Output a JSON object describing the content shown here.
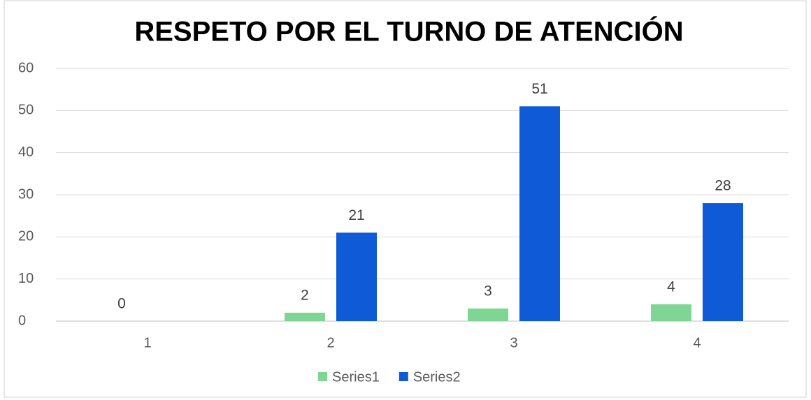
{
  "chart_data": {
    "type": "bar",
    "title": "RESPETO POR EL TURNO DE ATENCIÓN",
    "categories": [
      "1",
      "2",
      "3",
      "4"
    ],
    "series": [
      {
        "name": "Series1",
        "color": "#7fd694",
        "values": [
          0,
          2,
          3,
          4
        ]
      },
      {
        "name": "Series2",
        "color": "#0f5ad6",
        "values": [
          null,
          21,
          51,
          28
        ]
      }
    ],
    "ylim": [
      0,
      60
    ],
    "yticks": [
      0,
      10,
      20,
      30,
      40,
      50,
      60
    ],
    "grid": true,
    "legend": "bottom"
  }
}
